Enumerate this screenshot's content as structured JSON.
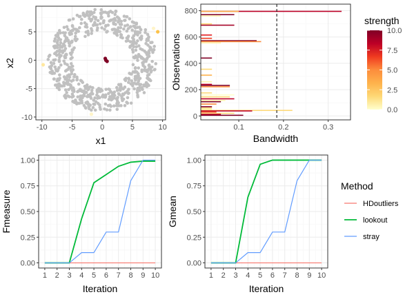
{
  "chart_data": [
    {
      "type": "scatter",
      "xlabel": "x1",
      "ylabel": "x2",
      "xlim": [
        -11,
        10.5
      ],
      "ylim": [
        -10.5,
        9.5
      ],
      "xticks": [
        -10,
        -5,
        0,
        5,
        10
      ],
      "yticks": [
        -10,
        -5,
        0,
        5
      ],
      "xtick_labels": [
        "-10",
        "-5",
        "0",
        "5",
        "10"
      ],
      "ytick_labels": [
        "-10",
        "-5",
        "0",
        "5"
      ],
      "ring_inner_radius": 5,
      "ring_outer_radius": 9,
      "ring_point_count": 700,
      "ring_color": "#c0c0c0",
      "highlighted_points": [
        {
          "x": 0.6,
          "y": 0.0,
          "strength": 10,
          "color": "#7f0024"
        },
        {
          "x": 0.8,
          "y": -0.2,
          "strength": 10,
          "color": "#7f0024"
        },
        {
          "x": 0.5,
          "y": 0.3,
          "strength": 10,
          "color": "#7f0024"
        },
        {
          "x": 9.2,
          "y": 5.0,
          "strength": 2.5,
          "color": "#fcc24a"
        },
        {
          "x": 8.5,
          "y": 5.6,
          "strength": 0.8,
          "color": "#fff4c9"
        },
        {
          "x": -9.8,
          "y": -0.8,
          "strength": 1.5,
          "color": "#ffe8a0"
        },
        {
          "x": -1.8,
          "y": -9.5,
          "strength": 0.8,
          "color": "#fff4c9"
        }
      ]
    },
    {
      "type": "bar",
      "orientation": "horizontal",
      "xlabel": "Bandwidth",
      "ylabel": "Observations",
      "xlim": [
        0.015,
        0.35
      ],
      "ylim": [
        -30,
        850
      ],
      "xticks": [
        0.1,
        0.2,
        0.3
      ],
      "xtick_labels": [
        "0.1",
        "0.2",
        "0.3"
      ],
      "yticks": [
        0,
        200,
        400,
        600,
        800
      ],
      "ytick_labels": [
        "0",
        "200",
        "400",
        "600",
        "800"
      ],
      "threshold_line": 0.185,
      "bars": [
        {
          "y": 795,
          "bandwidth": 0.33,
          "color": "#bd0026"
        },
        {
          "y": 795,
          "bandwidth": 0.1,
          "color": "#feb24c"
        },
        {
          "y": 770,
          "bandwidth": 0.09,
          "color": "#800026"
        },
        {
          "y": 760,
          "bandwidth": 0.06,
          "color": "#fff3b0"
        },
        {
          "y": 700,
          "bandwidth": 0.04,
          "color": "#fed976"
        },
        {
          "y": 690,
          "bandwidth": 0.09,
          "color": "#a50026"
        },
        {
          "y": 615,
          "bandwidth": 0.04,
          "color": "#e31a1c"
        },
        {
          "y": 590,
          "bandwidth": 0.04,
          "color": "#f03b20"
        },
        {
          "y": 572,
          "bandwidth": 0.14,
          "color": "#800026"
        },
        {
          "y": 565,
          "bandwidth": 0.15,
          "color": "#fd8d3c"
        },
        {
          "y": 555,
          "bandwidth": 0.06,
          "color": "#fff3b0"
        },
        {
          "y": 440,
          "bandwidth": 0.04,
          "color": "#800026"
        },
        {
          "y": 355,
          "bandwidth": 0.04,
          "color": "#fed976"
        },
        {
          "y": 310,
          "bandwidth": 0.04,
          "color": "#feb24c"
        },
        {
          "y": 260,
          "bandwidth": 0.04,
          "color": "#fff3b0"
        },
        {
          "y": 240,
          "bandwidth": 0.04,
          "color": "#bd0026"
        },
        {
          "y": 232,
          "bandwidth": 0.08,
          "color": "#800026"
        },
        {
          "y": 222,
          "bandwidth": 0.08,
          "color": "#fd8d3c"
        },
        {
          "y": 175,
          "bandwidth": 0.04,
          "color": "#fed976"
        },
        {
          "y": 160,
          "bandwidth": 0.09,
          "color": "#ffffcc"
        },
        {
          "y": 145,
          "bandwidth": 0.08,
          "color": "#fed976"
        },
        {
          "y": 130,
          "bandwidth": 0.09,
          "color": "#bd0026"
        },
        {
          "y": 118,
          "bandwidth": 0.07,
          "color": "#fff3b0"
        },
        {
          "y": 108,
          "bandwidth": 0.06,
          "color": "#800026"
        },
        {
          "y": 90,
          "bandwidth": 0.05,
          "color": "#fd8d3c"
        },
        {
          "y": 70,
          "bandwidth": 0.04,
          "color": "#800026"
        },
        {
          "y": 60,
          "bandwidth": 0.04,
          "color": "#fed976"
        },
        {
          "y": 50,
          "bandwidth": 0.04,
          "color": "#fff3b0"
        },
        {
          "y": 42,
          "bandwidth": 0.22,
          "color": "#fed976"
        },
        {
          "y": 38,
          "bandwidth": 0.13,
          "color": "#bd0026"
        },
        {
          "y": 30,
          "bandwidth": 0.05,
          "color": "#f03b20"
        },
        {
          "y": 20,
          "bandwidth": 0.09,
          "color": "#fed976"
        },
        {
          "y": 12,
          "bandwidth": 0.06,
          "color": "#bd0026"
        },
        {
          "y": 5,
          "bandwidth": 0.11,
          "color": "#800026"
        }
      ],
      "colorbar": {
        "title": "strength",
        "range": [
          0,
          10
        ],
        "ticks": [
          0,
          2.5,
          5,
          7.5,
          10
        ],
        "tick_labels": [
          "0.0",
          "2.5",
          "5.0",
          "7.5",
          "10.0"
        ],
        "colors": [
          "#ffffcc",
          "#fed976",
          "#feb24c",
          "#fd8d3c",
          "#f03b20",
          "#bd0026",
          "#800026"
        ]
      }
    },
    {
      "type": "line",
      "xlabel": "Iteration",
      "ylabel": "Fmeasure",
      "x": [
        1,
        2,
        3,
        4,
        5,
        6,
        7,
        8,
        9,
        10
      ],
      "xlim": [
        0.5,
        10.5
      ],
      "ylim": [
        -0.05,
        1.05
      ],
      "yticks": [
        0,
        0.25,
        0.5,
        0.75,
        1
      ],
      "ytick_labels": [
        "0.00",
        "0.25",
        "0.50",
        "0.75",
        "1.00"
      ],
      "xtick_labels": [
        "1",
        "2",
        "3",
        "4",
        "5",
        "6",
        "7",
        "8",
        "9",
        "10"
      ],
      "series": [
        {
          "name": "HDoutliers",
          "color": "#f8766d",
          "values": [
            0,
            0,
            0,
            0,
            0,
            0,
            0,
            0,
            0,
            0
          ]
        },
        {
          "name": "lookout",
          "color": "#00ba38",
          "values": [
            0,
            0,
            0,
            0.43,
            0.78,
            0.86,
            0.94,
            0.98,
            0.99,
            0.99
          ]
        },
        {
          "name": "stray",
          "color": "#619cff",
          "values": [
            0,
            0,
            0,
            0.1,
            0.1,
            0.3,
            0.3,
            0.8,
            1.0,
            1.0
          ]
        }
      ]
    },
    {
      "type": "line",
      "xlabel": "Iteration",
      "ylabel": "Gmean",
      "x": [
        1,
        2,
        3,
        4,
        5,
        6,
        7,
        8,
        9,
        10
      ],
      "xlim": [
        0.5,
        10.5
      ],
      "ylim": [
        -0.05,
        1.05
      ],
      "yticks": [
        0,
        0.25,
        0.5,
        0.75,
        1
      ],
      "ytick_labels": [
        "0.00",
        "0.25",
        "0.50",
        "0.75",
        "1.00"
      ],
      "xtick_labels": [
        "1",
        "2",
        "3",
        "4",
        "5",
        "6",
        "7",
        "8",
        "9",
        "10"
      ],
      "series": [
        {
          "name": "HDoutliers",
          "color": "#f8766d",
          "values": [
            0,
            0,
            0,
            0,
            0,
            0,
            0,
            0,
            0,
            0
          ]
        },
        {
          "name": "lookout",
          "color": "#00ba38",
          "values": [
            0,
            0,
            0,
            0.64,
            0.96,
            1.0,
            1.0,
            1.0,
            1.0,
            1.0
          ]
        },
        {
          "name": "stray",
          "color": "#619cff",
          "values": [
            0,
            0,
            0,
            0.1,
            0.1,
            0.3,
            0.3,
            0.8,
            1.0,
            1.0
          ]
        }
      ]
    }
  ],
  "legend": {
    "title": "Method",
    "items": [
      {
        "label": "HDoutliers",
        "color": "#f8766d"
      },
      {
        "label": "lookout",
        "color": "#00ba38"
      },
      {
        "label": "stray",
        "color": "#619cff"
      }
    ]
  },
  "style": {
    "panel_background": "#ffffff",
    "grid_major": "#ebebeb",
    "grid_minor": "#f5f5f5",
    "border": "#333333"
  }
}
